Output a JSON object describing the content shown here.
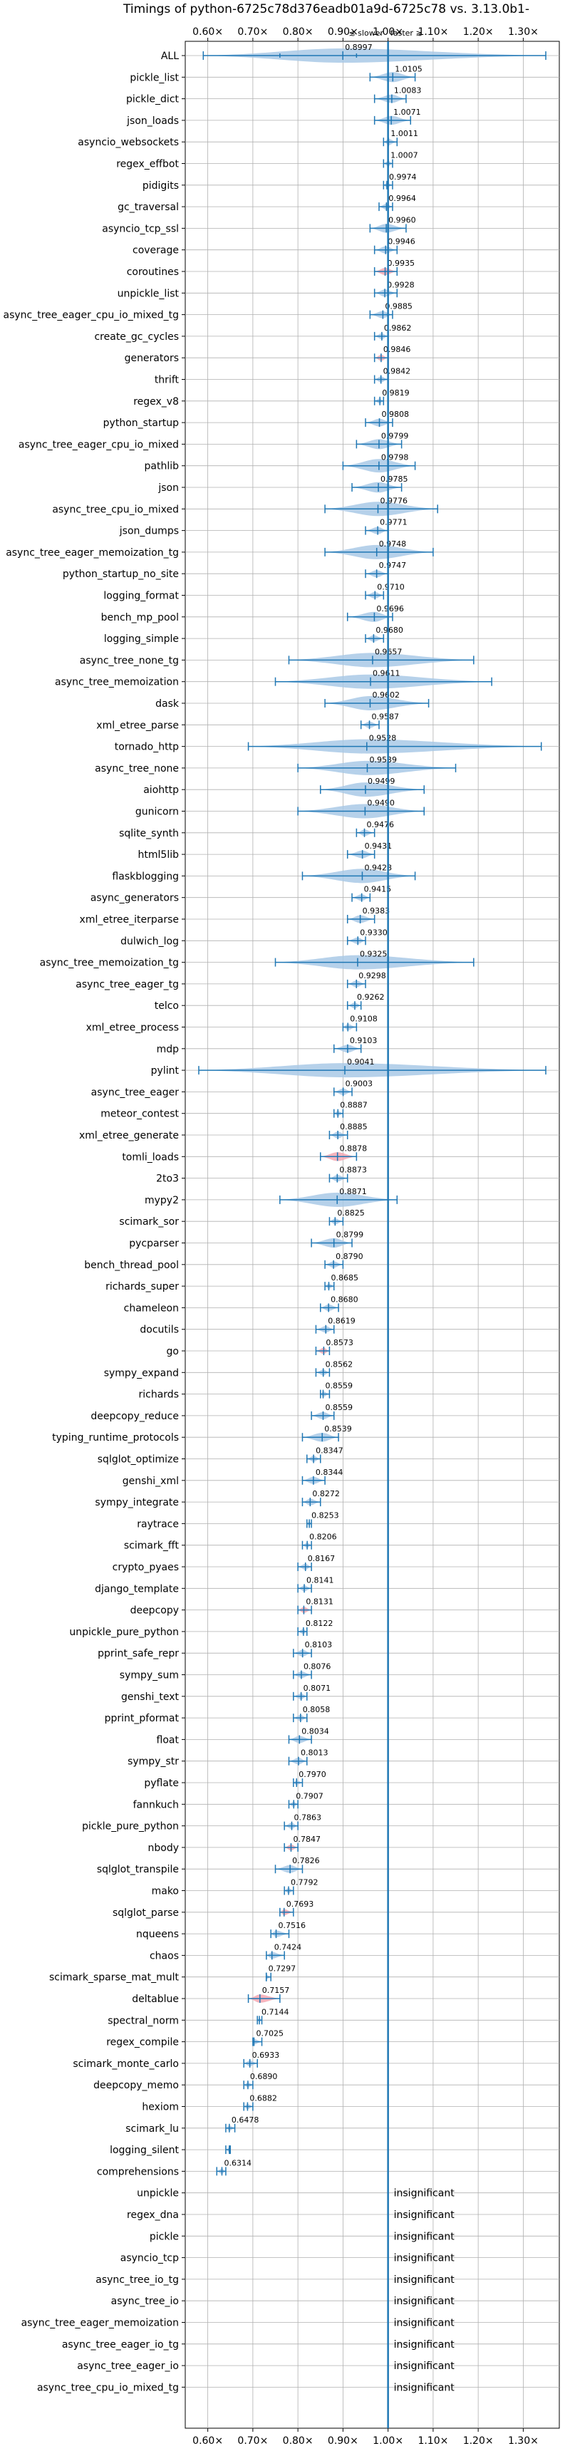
{
  "chart_data": {
    "type": "violin",
    "title": "Timings of python-6725c78d376eadb01a9d-6725c78 vs. 3.13.0b1-",
    "direction_hint": {
      "slower": "≲ slower",
      "faster": "faster ≳"
    },
    "xlim": [
      0.55,
      1.38
    ],
    "x_ticks": [
      0.6,
      0.7,
      0.8,
      0.9,
      1.0,
      1.1,
      1.2,
      1.3
    ],
    "x_tick_labels": [
      "0.60×",
      "0.70×",
      "0.80×",
      "0.90×",
      "1.00×",
      "1.10×",
      "1.20×",
      "1.30×"
    ],
    "reference_line": 1.0,
    "grid": true,
    "colors": {
      "normal": "#1f77b4",
      "fill": "#a9c9e6",
      "highlight": "#f4a7b2"
    },
    "insignificant_label": "insignificant",
    "series": [
      {
        "name": "ALL",
        "value": 0.8997,
        "label": "0.8997",
        "spread": [
          0.59,
          1.35
        ],
        "q": [
          0.76,
          0.93
        ]
      },
      {
        "name": "pickle_list",
        "value": 1.0105,
        "label": "1.0105",
        "spread": [
          0.96,
          1.06
        ]
      },
      {
        "name": "pickle_dict",
        "value": 1.0083,
        "label": "1.0083",
        "spread": [
          0.97,
          1.04
        ]
      },
      {
        "name": "json_loads",
        "value": 1.0071,
        "label": "1.0071",
        "spread": [
          0.97,
          1.05
        ]
      },
      {
        "name": "asyncio_websockets",
        "value": 1.0011,
        "label": "1.0011",
        "spread": [
          0.99,
          1.02
        ]
      },
      {
        "name": "regex_effbot",
        "value": 1.0007,
        "label": "1.0007",
        "spread": [
          0.99,
          1.01
        ]
      },
      {
        "name": "pidigits",
        "value": 0.9974,
        "label": "0.9974",
        "spread": [
          0.99,
          1.01
        ]
      },
      {
        "name": "gc_traversal",
        "value": 0.9964,
        "label": "0.9964",
        "spread": [
          0.98,
          1.01
        ]
      },
      {
        "name": "asyncio_tcp_ssl",
        "value": 0.996,
        "label": "0.9960",
        "spread": [
          0.96,
          1.04
        ]
      },
      {
        "name": "coverage",
        "value": 0.9946,
        "label": "0.9946",
        "spread": [
          0.97,
          1.02
        ]
      },
      {
        "name": "coroutines",
        "value": 0.9935,
        "label": "0.9935",
        "spread": [
          0.97,
          1.02
        ],
        "highlight": true
      },
      {
        "name": "unpickle_list",
        "value": 0.9928,
        "label": "0.9928",
        "spread": [
          0.97,
          1.02
        ]
      },
      {
        "name": "async_tree_eager_cpu_io_mixed_tg",
        "value": 0.9885,
        "label": "0.9885",
        "spread": [
          0.96,
          1.01
        ]
      },
      {
        "name": "create_gc_cycles",
        "value": 0.9862,
        "label": "0.9862",
        "spread": [
          0.97,
          1.0
        ]
      },
      {
        "name": "generators",
        "value": 0.9846,
        "label": "0.9846",
        "spread": [
          0.97,
          1.0
        ],
        "highlight": true
      },
      {
        "name": "thrift",
        "value": 0.9842,
        "label": "0.9842",
        "spread": [
          0.97,
          1.0
        ]
      },
      {
        "name": "regex_v8",
        "value": 0.9819,
        "label": "0.9819",
        "spread": [
          0.97,
          0.99
        ]
      },
      {
        "name": "python_startup",
        "value": 0.9808,
        "label": "0.9808",
        "spread": [
          0.95,
          1.01
        ]
      },
      {
        "name": "async_tree_eager_cpu_io_mixed",
        "value": 0.9799,
        "label": "0.9799",
        "spread": [
          0.93,
          1.03
        ]
      },
      {
        "name": "pathlib",
        "value": 0.9798,
        "label": "0.9798",
        "spread": [
          0.9,
          1.06
        ]
      },
      {
        "name": "json",
        "value": 0.9785,
        "label": "0.9785",
        "spread": [
          0.92,
          1.03
        ]
      },
      {
        "name": "async_tree_cpu_io_mixed",
        "value": 0.9776,
        "label": "0.9776",
        "spread": [
          0.86,
          1.11
        ]
      },
      {
        "name": "json_dumps",
        "value": 0.9771,
        "label": "0.9771",
        "spread": [
          0.95,
          1.0
        ]
      },
      {
        "name": "async_tree_eager_memoization_tg",
        "value": 0.9748,
        "label": "0.9748",
        "spread": [
          0.86,
          1.1
        ]
      },
      {
        "name": "python_startup_no_site",
        "value": 0.9747,
        "label": "0.9747",
        "spread": [
          0.95,
          1.0
        ]
      },
      {
        "name": "logging_format",
        "value": 0.971,
        "label": "0.9710",
        "spread": [
          0.95,
          0.99
        ]
      },
      {
        "name": "bench_mp_pool",
        "value": 0.9696,
        "label": "0.9696",
        "spread": [
          0.91,
          1.01
        ]
      },
      {
        "name": "logging_simple",
        "value": 0.968,
        "label": "0.9680",
        "spread": [
          0.95,
          0.99
        ]
      },
      {
        "name": "async_tree_none_tg",
        "value": 0.9657,
        "label": "0.9657",
        "spread": [
          0.78,
          1.19
        ]
      },
      {
        "name": "async_tree_memoization",
        "value": 0.9611,
        "label": "0.9611",
        "spread": [
          0.75,
          1.23
        ]
      },
      {
        "name": "dask",
        "value": 0.9602,
        "label": "0.9602",
        "spread": [
          0.86,
          1.09
        ]
      },
      {
        "name": "xml_etree_parse",
        "value": 0.9587,
        "label": "0.9587",
        "spread": [
          0.94,
          0.98
        ]
      },
      {
        "name": "tornado_http",
        "value": 0.9528,
        "label": "0.9528",
        "spread": [
          0.69,
          1.34
        ]
      },
      {
        "name": "async_tree_none",
        "value": 0.9539,
        "label": "0.9539",
        "spread": [
          0.8,
          1.15
        ]
      },
      {
        "name": "aiohttp",
        "value": 0.9499,
        "label": "0.9499",
        "spread": [
          0.85,
          1.08
        ]
      },
      {
        "name": "gunicorn",
        "value": 0.949,
        "label": "0.9490",
        "spread": [
          0.8,
          1.08
        ]
      },
      {
        "name": "sqlite_synth",
        "value": 0.9476,
        "label": "0.9476",
        "spread": [
          0.93,
          0.97
        ]
      },
      {
        "name": "html5lib",
        "value": 0.9431,
        "label": "0.9431",
        "spread": [
          0.91,
          0.97
        ]
      },
      {
        "name": "flaskblogging",
        "value": 0.9428,
        "label": "0.9428",
        "spread": [
          0.81,
          1.06
        ]
      },
      {
        "name": "async_generators",
        "value": 0.9415,
        "label": "0.9415",
        "spread": [
          0.92,
          0.96
        ]
      },
      {
        "name": "xml_etree_iterparse",
        "value": 0.9383,
        "label": "0.9383",
        "spread": [
          0.91,
          0.97
        ]
      },
      {
        "name": "dulwich_log",
        "value": 0.933,
        "label": "0.9330",
        "spread": [
          0.91,
          0.95
        ]
      },
      {
        "name": "async_tree_memoization_tg",
        "value": 0.9325,
        "label": "0.9325",
        "spread": [
          0.75,
          1.19
        ]
      },
      {
        "name": "async_tree_eager_tg",
        "value": 0.9298,
        "label": "0.9298",
        "spread": [
          0.91,
          0.95
        ]
      },
      {
        "name": "telco",
        "value": 0.9262,
        "label": "0.9262",
        "spread": [
          0.91,
          0.94
        ]
      },
      {
        "name": "xml_etree_process",
        "value": 0.9108,
        "label": "0.9108",
        "spread": [
          0.9,
          0.93
        ]
      },
      {
        "name": "mdp",
        "value": 0.9103,
        "label": "0.9103",
        "spread": [
          0.88,
          0.94
        ]
      },
      {
        "name": "pylint",
        "value": 0.9041,
        "label": "0.9041",
        "spread": [
          0.58,
          1.35
        ]
      },
      {
        "name": "async_tree_eager",
        "value": 0.9003,
        "label": "0.9003",
        "spread": [
          0.88,
          0.92
        ]
      },
      {
        "name": "meteor_contest",
        "value": 0.8887,
        "label": "0.8887",
        "spread": [
          0.88,
          0.9
        ]
      },
      {
        "name": "xml_etree_generate",
        "value": 0.8885,
        "label": "0.8885",
        "spread": [
          0.87,
          0.91
        ]
      },
      {
        "name": "tomli_loads",
        "value": 0.8878,
        "label": "0.8878",
        "spread": [
          0.85,
          0.93
        ],
        "highlight": true
      },
      {
        "name": "2to3",
        "value": 0.8873,
        "label": "0.8873",
        "spread": [
          0.87,
          0.91
        ]
      },
      {
        "name": "mypy2",
        "value": 0.8871,
        "label": "0.8871",
        "spread": [
          0.76,
          1.02
        ]
      },
      {
        "name": "scimark_sor",
        "value": 0.8825,
        "label": "0.8825",
        "spread": [
          0.87,
          0.9
        ]
      },
      {
        "name": "pycparser",
        "value": 0.8799,
        "label": "0.8799",
        "spread": [
          0.83,
          0.92
        ]
      },
      {
        "name": "bench_thread_pool",
        "value": 0.879,
        "label": "0.8790",
        "spread": [
          0.86,
          0.9
        ]
      },
      {
        "name": "richards_super",
        "value": 0.8685,
        "label": "0.8685",
        "spread": [
          0.86,
          0.88
        ]
      },
      {
        "name": "chameleon",
        "value": 0.868,
        "label": "0.8680",
        "spread": [
          0.85,
          0.89
        ]
      },
      {
        "name": "docutils",
        "value": 0.8619,
        "label": "0.8619",
        "spread": [
          0.84,
          0.88
        ]
      },
      {
        "name": "go",
        "value": 0.8573,
        "label": "0.8573",
        "spread": [
          0.84,
          0.87
        ],
        "highlight": true
      },
      {
        "name": "sympy_expand",
        "value": 0.8562,
        "label": "0.8562",
        "spread": [
          0.84,
          0.87
        ]
      },
      {
        "name": "richards",
        "value": 0.8559,
        "label": "0.8559",
        "spread": [
          0.85,
          0.87
        ]
      },
      {
        "name": "deepcopy_reduce",
        "value": 0.8559,
        "label": "0.8559",
        "spread": [
          0.83,
          0.88
        ]
      },
      {
        "name": "typing_runtime_protocols",
        "value": 0.8539,
        "label": "0.8539",
        "spread": [
          0.81,
          0.89
        ]
      },
      {
        "name": "sqlglot_optimize",
        "value": 0.8347,
        "label": "0.8347",
        "spread": [
          0.82,
          0.85
        ]
      },
      {
        "name": "genshi_xml",
        "value": 0.8344,
        "label": "0.8344",
        "spread": [
          0.81,
          0.86
        ]
      },
      {
        "name": "sympy_integrate",
        "value": 0.8272,
        "label": "0.8272",
        "spread": [
          0.81,
          0.85
        ]
      },
      {
        "name": "raytrace",
        "value": 0.8253,
        "label": "0.8253",
        "spread": [
          0.82,
          0.83
        ]
      },
      {
        "name": "scimark_fft",
        "value": 0.8206,
        "label": "0.8206",
        "spread": [
          0.81,
          0.83
        ]
      },
      {
        "name": "crypto_pyaes",
        "value": 0.8167,
        "label": "0.8167",
        "spread": [
          0.8,
          0.83
        ]
      },
      {
        "name": "django_template",
        "value": 0.8141,
        "label": "0.8141",
        "spread": [
          0.8,
          0.83
        ]
      },
      {
        "name": "deepcopy",
        "value": 0.8131,
        "label": "0.8131",
        "spread": [
          0.8,
          0.83
        ],
        "highlight": true
      },
      {
        "name": "unpickle_pure_python",
        "value": 0.8122,
        "label": "0.8122",
        "spread": [
          0.8,
          0.82
        ]
      },
      {
        "name": "pprint_safe_repr",
        "value": 0.8103,
        "label": "0.8103",
        "spread": [
          0.79,
          0.83
        ]
      },
      {
        "name": "sympy_sum",
        "value": 0.8076,
        "label": "0.8076",
        "spread": [
          0.79,
          0.83
        ]
      },
      {
        "name": "genshi_text",
        "value": 0.8071,
        "label": "0.8071",
        "spread": [
          0.79,
          0.82
        ]
      },
      {
        "name": "pprint_pformat",
        "value": 0.8058,
        "label": "0.8058",
        "spread": [
          0.79,
          0.82
        ]
      },
      {
        "name": "float",
        "value": 0.8034,
        "label": "0.8034",
        "spread": [
          0.78,
          0.83
        ]
      },
      {
        "name": "sympy_str",
        "value": 0.8013,
        "label": "0.8013",
        "spread": [
          0.78,
          0.82
        ]
      },
      {
        "name": "pyflate",
        "value": 0.797,
        "label": "0.7970",
        "spread": [
          0.79,
          0.81
        ]
      },
      {
        "name": "fannkuch",
        "value": 0.7907,
        "label": "0.7907",
        "spread": [
          0.78,
          0.8
        ]
      },
      {
        "name": "pickle_pure_python",
        "value": 0.7863,
        "label": "0.7863",
        "spread": [
          0.77,
          0.8
        ]
      },
      {
        "name": "nbody",
        "value": 0.7847,
        "label": "0.7847",
        "spread": [
          0.77,
          0.8
        ],
        "highlight": true
      },
      {
        "name": "sqlglot_transpile",
        "value": 0.7826,
        "label": "0.7826",
        "spread": [
          0.75,
          0.81
        ]
      },
      {
        "name": "mako",
        "value": 0.7792,
        "label": "0.7792",
        "spread": [
          0.77,
          0.79
        ]
      },
      {
        "name": "sqlglot_parse",
        "value": 0.7693,
        "label": "0.7693",
        "spread": [
          0.76,
          0.79
        ],
        "highlight": true
      },
      {
        "name": "nqueens",
        "value": 0.7516,
        "label": "0.7516",
        "spread": [
          0.74,
          0.78
        ]
      },
      {
        "name": "chaos",
        "value": 0.7424,
        "label": "0.7424",
        "spread": [
          0.73,
          0.77
        ]
      },
      {
        "name": "scimark_sparse_mat_mult",
        "value": 0.7297,
        "label": "0.7297",
        "spread": [
          0.73,
          0.74
        ]
      },
      {
        "name": "deltablue",
        "value": 0.7157,
        "label": "0.7157",
        "spread": [
          0.69,
          0.76
        ],
        "highlight": true
      },
      {
        "name": "spectral_norm",
        "value": 0.7144,
        "label": "0.7144",
        "spread": [
          0.71,
          0.72
        ]
      },
      {
        "name": "regex_compile",
        "value": 0.7025,
        "label": "0.7025",
        "spread": [
          0.7,
          0.72
        ]
      },
      {
        "name": "scimark_monte_carlo",
        "value": 0.6933,
        "label": "0.6933",
        "spread": [
          0.68,
          0.71
        ]
      },
      {
        "name": "deepcopy_memo",
        "value": 0.689,
        "label": "0.6890",
        "spread": [
          0.68,
          0.7
        ]
      },
      {
        "name": "hexiom",
        "value": 0.6882,
        "label": "0.6882",
        "spread": [
          0.68,
          0.7
        ]
      },
      {
        "name": "scimark_lu",
        "value": 0.6478,
        "label": "0.6478",
        "spread": [
          0.64,
          0.66
        ]
      },
      {
        "name": "logging_silent",
        "value": 0.6478,
        "label": "",
        "spread": [
          0.64,
          0.65
        ]
      },
      {
        "name": "comprehensions",
        "value": 0.6314,
        "label": "0.6314",
        "spread": [
          0.62,
          0.64
        ]
      },
      {
        "name": "unpickle",
        "insignificant": true
      },
      {
        "name": "regex_dna",
        "insignificant": true
      },
      {
        "name": "pickle",
        "insignificant": true
      },
      {
        "name": "asyncio_tcp",
        "insignificant": true
      },
      {
        "name": "async_tree_io_tg",
        "insignificant": true
      },
      {
        "name": "async_tree_io",
        "insignificant": true
      },
      {
        "name": "async_tree_eager_memoization",
        "insignificant": true
      },
      {
        "name": "async_tree_eager_io_tg",
        "insignificant": true
      },
      {
        "name": "async_tree_eager_io",
        "insignificant": true
      },
      {
        "name": "async_tree_cpu_io_mixed_tg",
        "insignificant": true
      }
    ]
  }
}
